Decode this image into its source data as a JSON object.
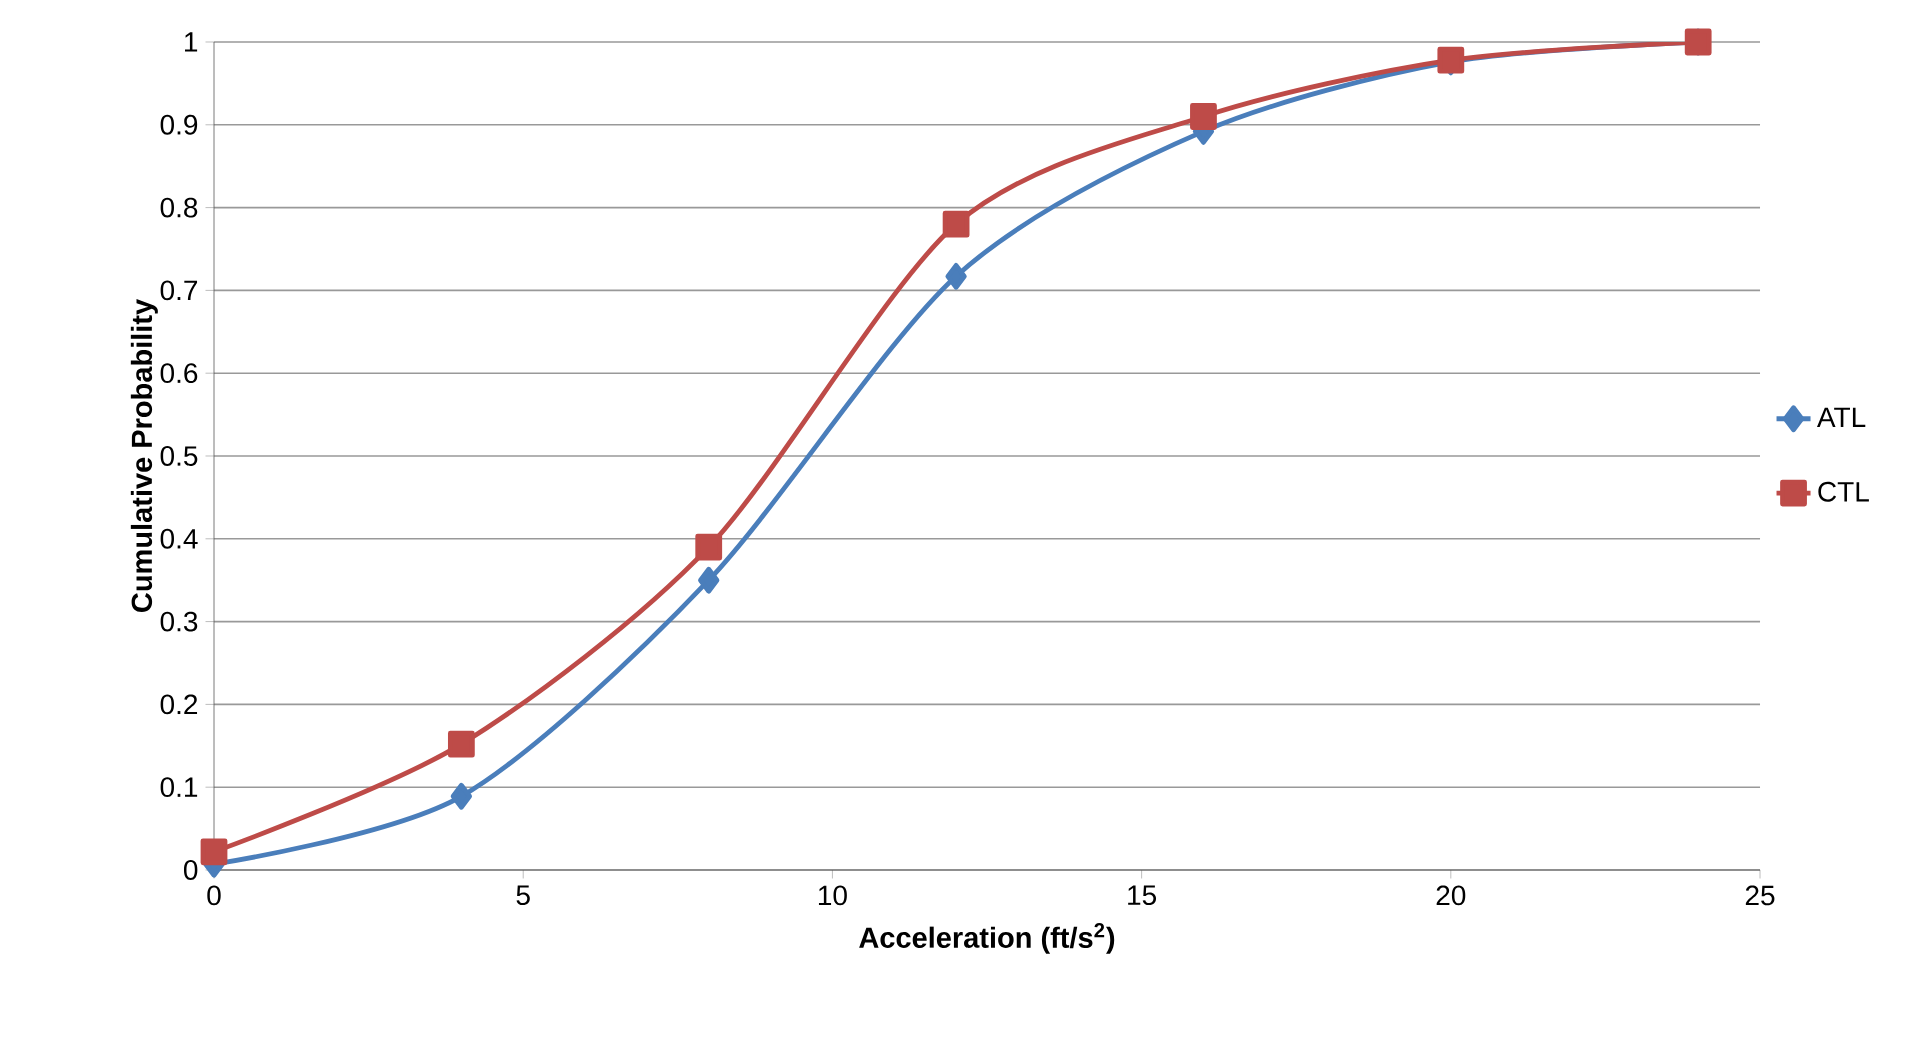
{
  "chart_data": {
    "type": "line",
    "xlabel": "Acceleration (ft/s$^{2}$)",
    "ylabel": "Cumulative Probability",
    "x": [
      0,
      4,
      8,
      12,
      16,
      20,
      24
    ],
    "series": [
      {
        "name": "ATL",
        "color": "#4a7ebb",
        "marker": "diamond",
        "values": [
          0.007,
          0.089,
          0.35,
          0.717,
          0.892,
          0.976,
          1.0
        ]
      },
      {
        "name": "CTL",
        "color": "#be4b48",
        "marker": "square",
        "values": [
          0.022,
          0.152,
          0.39,
          0.78,
          0.91,
          0.978,
          1.0
        ]
      }
    ],
    "xlim": [
      0,
      25
    ],
    "xticks": [
      0,
      5,
      10,
      15,
      20,
      25
    ],
    "ylim": [
      0,
      1
    ],
    "yticks": [
      0,
      0.1,
      0.2,
      0.3,
      0.4,
      0.5,
      0.6,
      0.7,
      0.8,
      0.9,
      1
    ],
    "grid": "y",
    "legend": "right",
    "line_style": "solid"
  }
}
